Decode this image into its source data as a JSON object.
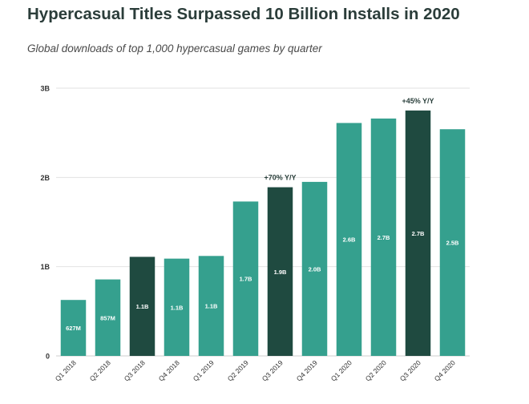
{
  "title": "Hypercasual Titles Surpassed 10 Billion Installs in 2020",
  "subtitle": "Global downloads of top 1,000 hypercasual games by quarter",
  "colors": {
    "bar": "#35a08e",
    "highlight": "#1f4a40",
    "grid": "#e2e2e2",
    "axis_text": "#333333",
    "annotation": "#2a3f3b",
    "label": "#ffffff"
  },
  "chart_data": {
    "type": "bar",
    "categories": [
      "Q1 2018",
      "Q2 2018",
      "Q3 2018",
      "Q4 2018",
      "Q1 2019",
      "Q2 2019",
      "Q3 2019",
      "Q4 2019",
      "Q1 2020",
      "Q2 2020",
      "Q3 2020",
      "Q4 2020"
    ],
    "values": [
      627000000,
      857000000,
      1100000000,
      1100000000,
      1100000000,
      1700000000,
      1900000000,
      2000000000,
      2600000000,
      2700000000,
      2700000000,
      2500000000
    ],
    "chart_values": [
      0.627,
      0.857,
      1.11,
      1.09,
      1.12,
      1.73,
      1.89,
      1.95,
      2.61,
      2.66,
      2.75,
      2.54
    ],
    "data_labels": [
      "627M",
      "857M",
      "1.1B",
      "1.1B",
      "1.1B",
      "1.7B",
      "1.9B",
      "2.0B",
      "2.6B",
      "2.7B",
      "2.7B",
      "2.5B"
    ],
    "highlighted": [
      false,
      false,
      true,
      false,
      false,
      false,
      true,
      false,
      false,
      false,
      true,
      false
    ],
    "annotations": [
      {
        "index": 6,
        "text": "+70% Y/Y"
      },
      {
        "index": 10,
        "text": "+45% Y/Y"
      }
    ],
    "y_ticks": [
      0,
      1,
      2,
      3
    ],
    "y_tick_labels": [
      "0",
      "1B",
      "2B",
      "3B"
    ],
    "ylim": [
      0,
      3
    ],
    "xlabel": "",
    "ylabel": ""
  }
}
